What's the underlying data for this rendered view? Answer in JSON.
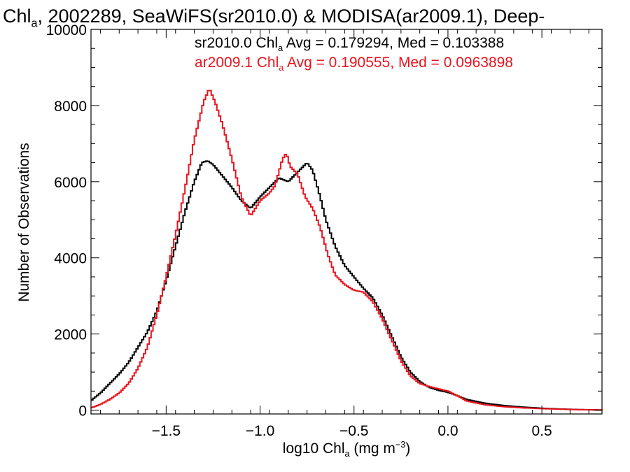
{
  "chart_data": {
    "type": "line",
    "title": {
      "pre": "Chl",
      "sub": "a",
      "post": ", 2002289, SeaWiFS(sr2010.0) & MODISA(ar2009.1), Deep-"
    },
    "xlabel": {
      "pre": "log10 Chl",
      "sub": "a",
      "mid": " (mg m",
      "sup": "−3",
      "post": ")"
    },
    "ylabel": "Number of Observations",
    "xlim": [
      -1.9,
      0.82
    ],
    "ylim": [
      -100,
      10000
    ],
    "x_ticks": [
      -1.5,
      -1.0,
      -0.5,
      0.0,
      0.5
    ],
    "x_tick_labels": [
      "−1.5",
      "−1.0",
      "−0.5",
      "0.0",
      "0.5"
    ],
    "y_ticks": [
      0,
      2000,
      4000,
      6000,
      8000,
      10000
    ],
    "y_tick_labels": [
      "0",
      "2000",
      "4000",
      "6000",
      "8000",
      "10000"
    ],
    "series": [
      {
        "name": "sr2010.0",
        "legend": {
          "pre": "sr2010.0 Chl",
          "sub": "a",
          "post": " Avg = 0.179294, Med = 0.103388"
        },
        "color": "#000000",
        "points": [
          [
            -1.9,
            250
          ],
          [
            -1.85,
            450
          ],
          [
            -1.8,
            700
          ],
          [
            -1.75,
            950
          ],
          [
            -1.7,
            1250
          ],
          [
            -1.65,
            1650
          ],
          [
            -1.6,
            2050
          ],
          [
            -1.55,
            2600
          ],
          [
            -1.5,
            3400
          ],
          [
            -1.45,
            4300
          ],
          [
            -1.4,
            5200
          ],
          [
            -1.35,
            6000
          ],
          [
            -1.31,
            6500
          ],
          [
            -1.28,
            6550
          ],
          [
            -1.25,
            6450
          ],
          [
            -1.2,
            6150
          ],
          [
            -1.15,
            5850
          ],
          [
            -1.1,
            5500
          ],
          [
            -1.05,
            5300
          ],
          [
            -1.0,
            5600
          ],
          [
            -0.95,
            5850
          ],
          [
            -0.9,
            6100
          ],
          [
            -0.85,
            6000
          ],
          [
            -0.8,
            6250
          ],
          [
            -0.75,
            6500
          ],
          [
            -0.72,
            6300
          ],
          [
            -0.68,
            5600
          ],
          [
            -0.65,
            5000
          ],
          [
            -0.6,
            4300
          ],
          [
            -0.55,
            3800
          ],
          [
            -0.5,
            3500
          ],
          [
            -0.45,
            3200
          ],
          [
            -0.4,
            2950
          ],
          [
            -0.35,
            2500
          ],
          [
            -0.3,
            1950
          ],
          [
            -0.25,
            1400
          ],
          [
            -0.2,
            1000
          ],
          [
            -0.15,
            750
          ],
          [
            -0.1,
            600
          ],
          [
            -0.05,
            520
          ],
          [
            0.0,
            470
          ],
          [
            0.05,
            380
          ],
          [
            0.1,
            280
          ],
          [
            0.2,
            180
          ],
          [
            0.3,
            120
          ],
          [
            0.4,
            80
          ],
          [
            0.5,
            50
          ],
          [
            0.6,
            30
          ],
          [
            0.7,
            15
          ],
          [
            0.82,
            5
          ]
        ]
      },
      {
        "name": "ar2009.1",
        "legend": {
          "pre": "ar2009.1 Chl",
          "sub": "a",
          "post": " Avg = 0.190555, Med = 0.0963898"
        },
        "color": "#e8141e",
        "points": [
          [
            -1.9,
            60
          ],
          [
            -1.85,
            150
          ],
          [
            -1.8,
            280
          ],
          [
            -1.75,
            450
          ],
          [
            -1.7,
            700
          ],
          [
            -1.65,
            1100
          ],
          [
            -1.6,
            1650
          ],
          [
            -1.55,
            2500
          ],
          [
            -1.5,
            3500
          ],
          [
            -1.45,
            4600
          ],
          [
            -1.4,
            5800
          ],
          [
            -1.35,
            7100
          ],
          [
            -1.3,
            8100
          ],
          [
            -1.27,
            8450
          ],
          [
            -1.24,
            8100
          ],
          [
            -1.2,
            7500
          ],
          [
            -1.15,
            6600
          ],
          [
            -1.1,
            5600
          ],
          [
            -1.05,
            5100
          ],
          [
            -1.0,
            5500
          ],
          [
            -0.95,
            5700
          ],
          [
            -0.92,
            5900
          ],
          [
            -0.88,
            6600
          ],
          [
            -0.86,
            6750
          ],
          [
            -0.84,
            6400
          ],
          [
            -0.8,
            6200
          ],
          [
            -0.76,
            5600
          ],
          [
            -0.72,
            5300
          ],
          [
            -0.68,
            4800
          ],
          [
            -0.64,
            4100
          ],
          [
            -0.6,
            3550
          ],
          [
            -0.55,
            3300
          ],
          [
            -0.5,
            3150
          ],
          [
            -0.45,
            3100
          ],
          [
            -0.4,
            2850
          ],
          [
            -0.35,
            2400
          ],
          [
            -0.3,
            1850
          ],
          [
            -0.25,
            1300
          ],
          [
            -0.2,
            900
          ],
          [
            -0.15,
            700
          ],
          [
            -0.1,
            620
          ],
          [
            -0.05,
            560
          ],
          [
            0.0,
            500
          ],
          [
            0.05,
            380
          ],
          [
            0.1,
            240
          ],
          [
            0.2,
            140
          ],
          [
            0.3,
            90
          ],
          [
            0.4,
            60
          ],
          [
            0.5,
            40
          ],
          [
            0.6,
            25
          ],
          [
            0.7,
            12
          ],
          [
            0.82,
            5
          ]
        ]
      }
    ]
  }
}
